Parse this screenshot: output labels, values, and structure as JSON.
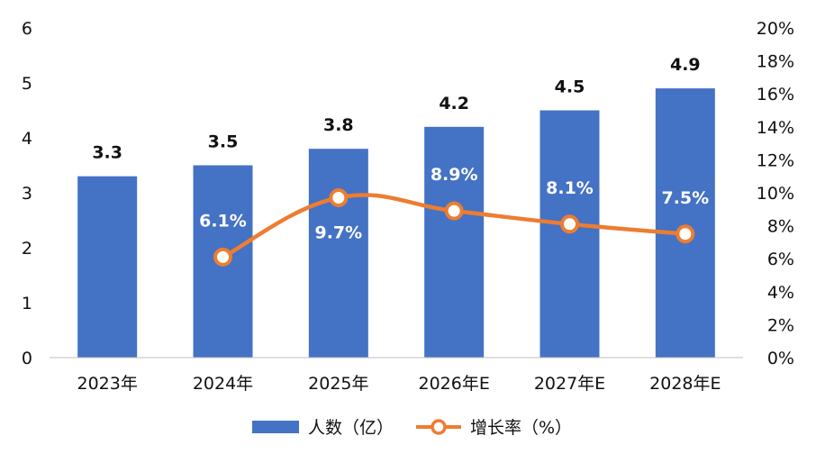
{
  "chart_data": {
    "type": "bar",
    "categories": [
      "2023年",
      "2024年",
      "2025年",
      "2026年E",
      "2027年E",
      "2028年E"
    ],
    "series": [
      {
        "name": "人数（亿）",
        "kind": "bar",
        "axis": "left",
        "values": [
          3.3,
          3.5,
          3.8,
          4.2,
          4.5,
          4.9
        ],
        "labels": [
          "3.3",
          "3.5",
          "3.8",
          "4.2",
          "4.5",
          "4.9"
        ],
        "color": "#4472c4"
      },
      {
        "name": "增长率（%）",
        "kind": "line",
        "axis": "right",
        "values": [
          null,
          6.1,
          9.7,
          8.9,
          8.1,
          7.5
        ],
        "labels": [
          null,
          "6.1%",
          "9.7%",
          "8.9%",
          "8.1%",
          "7.5%"
        ],
        "color": "#ed7d31"
      }
    ],
    "left_axis": {
      "ylim": [
        0,
        6
      ],
      "ticks": [
        "0",
        "1",
        "2",
        "3",
        "4",
        "5",
        "6"
      ]
    },
    "right_axis": {
      "ylim": [
        0,
        20
      ],
      "ticks": [
        "0%",
        "2%",
        "4%",
        "6%",
        "8%",
        "10%",
        "12%",
        "14%",
        "16%",
        "18%",
        "20%"
      ]
    },
    "grid": false,
    "legend_position": "bottom-center"
  }
}
